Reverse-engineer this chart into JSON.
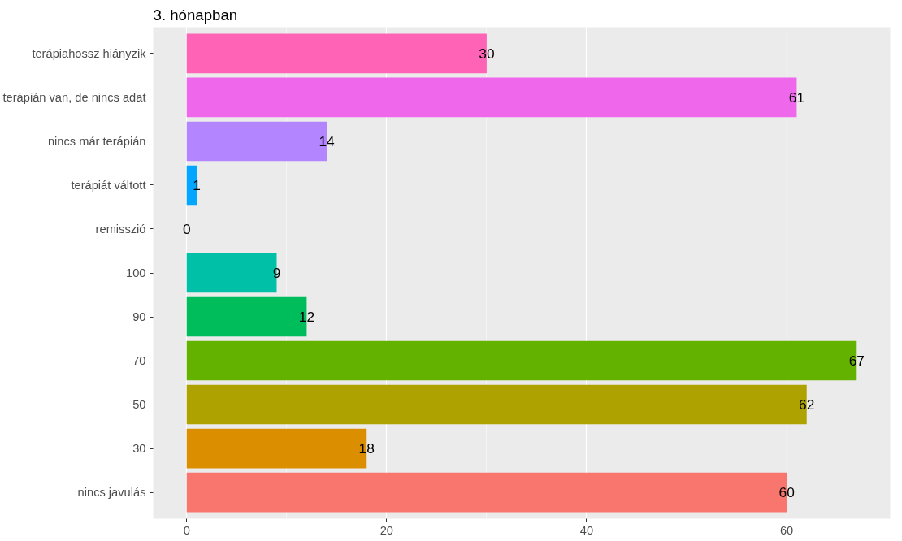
{
  "chart_data": {
    "type": "bar",
    "orientation": "horizontal",
    "title": "3. hónapban",
    "categories": [
      "terápiahossz hiányzik",
      "terápián van, de nincs adat",
      "nincs már terápián",
      "terápiát váltott",
      "remisszió",
      "100",
      "90",
      "70",
      "50",
      "30",
      "nincs javulás"
    ],
    "values": [
      30,
      61,
      14,
      1,
      0,
      9,
      12,
      67,
      62,
      18,
      60
    ],
    "colors": [
      "#ff63b6",
      "#ef67eb",
      "#b385ff",
      "#00a6ff",
      "#00bade",
      "#00c1a7",
      "#00bd5c",
      "#64b200",
      "#aea200",
      "#db8e00",
      "#f8766d"
    ],
    "xlim": [
      -3.35,
      70.35
    ],
    "xticks": [
      0,
      20,
      40,
      60
    ],
    "grid": "x",
    "data_labels": true
  }
}
